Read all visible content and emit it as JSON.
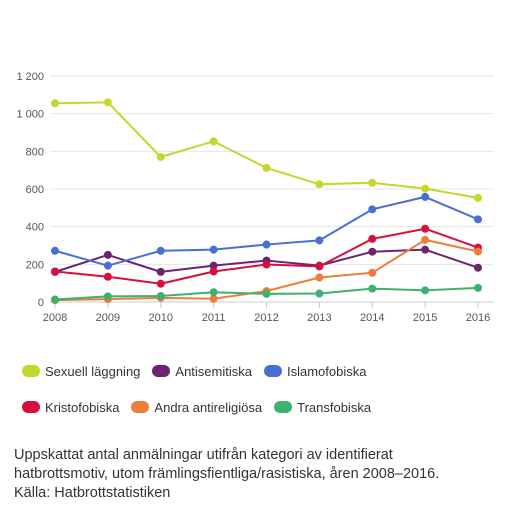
{
  "chart_data": {
    "type": "line",
    "x": [
      "2008",
      "2009",
      "2010",
      "2011",
      "2012",
      "2013",
      "2014",
      "2015",
      "2016"
    ],
    "ylim": [
      0,
      1200
    ],
    "yticks": [
      0,
      200,
      400,
      600,
      800,
      1000,
      1200
    ],
    "ytick_labels": [
      "0",
      "200",
      "400",
      "600",
      "800",
      "1 000",
      "1 200"
    ],
    "grid": true,
    "legend_position": "bottom",
    "series": [
      {
        "name": "Sexuell läggning",
        "color": "#c5d62c",
        "values": [
          1055,
          1060,
          770,
          853,
          712,
          625,
          633,
          602,
          553
        ]
      },
      {
        "name": "Antisemitiska",
        "color": "#6b2570",
        "values": [
          160,
          250,
          160,
          193,
          220,
          193,
          267,
          278,
          182
        ]
      },
      {
        "name": "Islamofobiska",
        "color": "#4a6fd4",
        "values": [
          272,
          193,
          272,
          278,
          305,
          327,
          492,
          558,
          439
        ]
      },
      {
        "name": "Kristofobiska",
        "color": "#d80f3c",
        "values": [
          162,
          134,
          97,
          162,
          199,
          189,
          335,
          389,
          289
        ]
      },
      {
        "name": "Andra antireligiösa",
        "color": "#ee7d3b",
        "values": [
          10,
          15,
          22,
          17,
          58,
          130,
          155,
          330,
          268
        ]
      },
      {
        "name": "Transfobiska",
        "color": "#3eb06f",
        "values": [
          13,
          30,
          32,
          52,
          43,
          45,
          71,
          62,
          75
        ]
      }
    ]
  },
  "legend_rows": [
    [
      {
        "label": "Sexuell läggning",
        "color": "#c5d62c"
      },
      {
        "label": "Antisemitiska",
        "color": "#6b2570"
      },
      {
        "label": "Islamofobiska",
        "color": "#4a6fd4"
      }
    ],
    [
      {
        "label": "Kristofobiska",
        "color": "#d80f3c"
      },
      {
        "label": "Andra antireligiösa",
        "color": "#ee7d3b"
      },
      {
        "label": "Transfobiska",
        "color": "#3eb06f"
      }
    ]
  ],
  "caption": {
    "line1": "Uppskattat antal anmälningar utifrån kategori av identifierat",
    "line2": "hatbrottsmotiv, utom främlingsfientliga/rasistiska, åren 2008–2016.",
    "line3": "Källa: Hatbrottstatistiken"
  }
}
